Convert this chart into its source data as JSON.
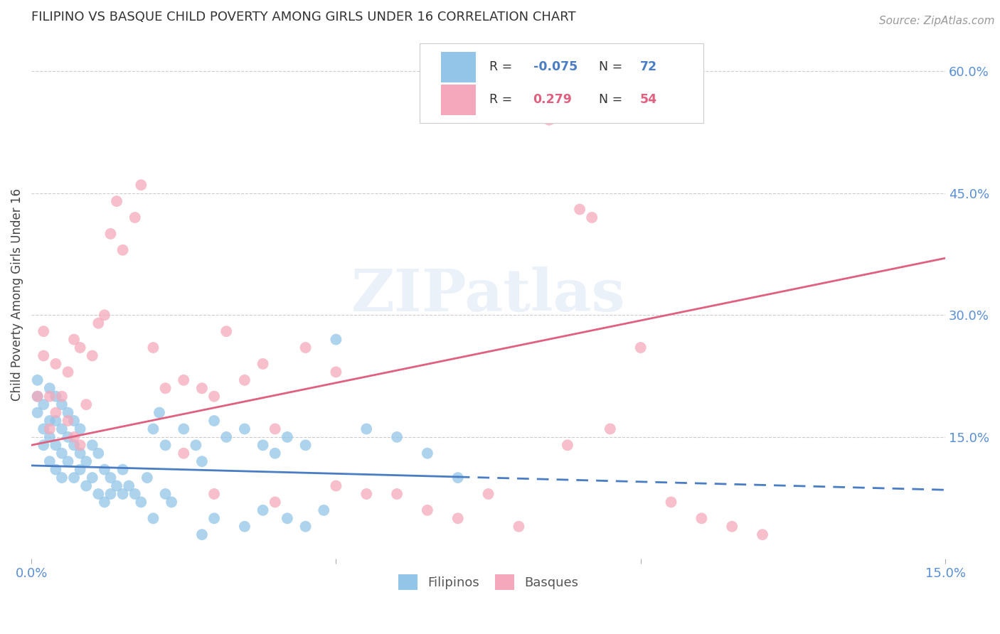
{
  "title": "FILIPINO VS BASQUE CHILD POVERTY AMONG GIRLS UNDER 16 CORRELATION CHART",
  "source": "Source: ZipAtlas.com",
  "ylabel": "Child Poverty Among Girls Under 16",
  "background_color": "#ffffff",
  "watermark_text": "ZIPatlas",
  "xlim": [
    0.0,
    0.15
  ],
  "ylim": [
    0.0,
    0.65
  ],
  "filipinos_color": "#92C5E8",
  "basques_color": "#F5A8BB",
  "filipinos_line_color": "#4A7DC4",
  "basques_line_color": "#E06080",
  "R_filipinos": -0.075,
  "N_filipinos": 72,
  "R_basques": 0.279,
  "N_basques": 54,
  "legend_label_1": "Filipinos",
  "legend_label_2": "Basques",
  "fil_line_solid_end": 0.07,
  "fil_line_y_at_0": 0.115,
  "fil_line_y_at_015": 0.085,
  "bas_line_y_at_0": 0.14,
  "bas_line_y_at_015": 0.37,
  "filipinos_x": [
    0.001,
    0.001,
    0.001,
    0.002,
    0.002,
    0.002,
    0.003,
    0.003,
    0.003,
    0.003,
    0.004,
    0.004,
    0.004,
    0.004,
    0.005,
    0.005,
    0.005,
    0.005,
    0.006,
    0.006,
    0.006,
    0.007,
    0.007,
    0.007,
    0.008,
    0.008,
    0.008,
    0.009,
    0.009,
    0.01,
    0.01,
    0.011,
    0.011,
    0.012,
    0.012,
    0.013,
    0.013,
    0.014,
    0.015,
    0.015,
    0.016,
    0.017,
    0.018,
    0.019,
    0.02,
    0.021,
    0.022,
    0.023,
    0.025,
    0.027,
    0.028,
    0.03,
    0.032,
    0.035,
    0.038,
    0.04,
    0.042,
    0.045,
    0.05,
    0.055,
    0.06,
    0.065,
    0.07,
    0.042,
    0.045,
    0.048,
    0.03,
    0.035,
    0.038,
    0.028,
    0.02,
    0.022
  ],
  "filipinos_y": [
    0.2,
    0.22,
    0.18,
    0.16,
    0.19,
    0.14,
    0.17,
    0.21,
    0.12,
    0.15,
    0.14,
    0.17,
    0.11,
    0.2,
    0.13,
    0.16,
    0.19,
    0.1,
    0.18,
    0.15,
    0.12,
    0.14,
    0.17,
    0.1,
    0.13,
    0.11,
    0.16,
    0.09,
    0.12,
    0.14,
    0.1,
    0.13,
    0.08,
    0.11,
    0.07,
    0.1,
    0.08,
    0.09,
    0.08,
    0.11,
    0.09,
    0.08,
    0.07,
    0.1,
    0.16,
    0.18,
    0.14,
    0.07,
    0.16,
    0.14,
    0.12,
    0.17,
    0.15,
    0.16,
    0.14,
    0.13,
    0.15,
    0.14,
    0.27,
    0.16,
    0.15,
    0.13,
    0.1,
    0.05,
    0.04,
    0.06,
    0.05,
    0.04,
    0.06,
    0.03,
    0.05,
    0.08
  ],
  "basques_x": [
    0.001,
    0.002,
    0.002,
    0.003,
    0.003,
    0.004,
    0.004,
    0.005,
    0.006,
    0.006,
    0.007,
    0.007,
    0.008,
    0.008,
    0.009,
    0.01,
    0.011,
    0.012,
    0.013,
    0.014,
    0.015,
    0.017,
    0.018,
    0.02,
    0.022,
    0.025,
    0.028,
    0.03,
    0.032,
    0.035,
    0.038,
    0.04,
    0.045,
    0.05,
    0.055,
    0.06,
    0.065,
    0.07,
    0.075,
    0.08,
    0.085,
    0.088,
    0.09,
    0.092,
    0.095,
    0.1,
    0.105,
    0.11,
    0.115,
    0.12,
    0.025,
    0.03,
    0.04,
    0.05
  ],
  "basques_y": [
    0.2,
    0.25,
    0.28,
    0.16,
    0.2,
    0.18,
    0.24,
    0.2,
    0.17,
    0.23,
    0.27,
    0.15,
    0.26,
    0.14,
    0.19,
    0.25,
    0.29,
    0.3,
    0.4,
    0.44,
    0.38,
    0.42,
    0.46,
    0.26,
    0.21,
    0.22,
    0.21,
    0.2,
    0.28,
    0.22,
    0.24,
    0.16,
    0.26,
    0.23,
    0.08,
    0.08,
    0.06,
    0.05,
    0.08,
    0.04,
    0.54,
    0.14,
    0.43,
    0.42,
    0.16,
    0.26,
    0.07,
    0.05,
    0.04,
    0.03,
    0.13,
    0.08,
    0.07,
    0.09
  ]
}
